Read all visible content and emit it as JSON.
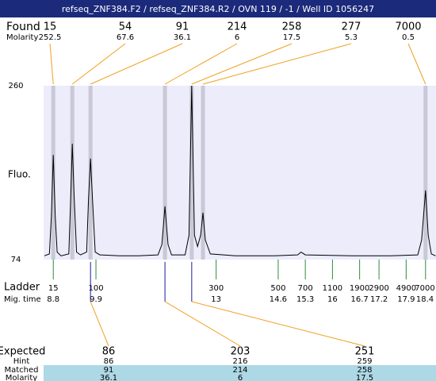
{
  "title": "refseq_ZNF384.F2 / refseq_ZNF384.R2 / OVN 119 / -1 / Well ID 1056247",
  "found": {
    "label": "Found",
    "sublabel": "Molarity",
    "sizes": [
      15,
      54,
      91,
      214,
      258,
      277,
      7000
    ],
    "molarity": [
      252.5,
      67.6,
      36.1,
      6,
      17.5,
      5.3,
      0.5
    ],
    "times": [
      8.8,
      9.29,
      9.76,
      11.68,
      12.37,
      12.66,
      18.4
    ]
  },
  "chart_data": {
    "type": "line",
    "ylabel": "Fluo.",
    "x": [
      8.57,
      8.7,
      8.75,
      8.8,
      8.85,
      8.9,
      9.0,
      9.2,
      9.25,
      9.29,
      9.34,
      9.4,
      9.5,
      9.66,
      9.71,
      9.76,
      9.81,
      9.88,
      10.0,
      10.5,
      11.0,
      11.5,
      11.6,
      11.68,
      11.76,
      11.85,
      12.2,
      12.3,
      12.37,
      12.44,
      12.52,
      12.6,
      12.66,
      12.72,
      12.85,
      13.5,
      14.5,
      15.1,
      15.19,
      15.3,
      16.5,
      17.5,
      18.2,
      18.3,
      18.4,
      18.47,
      18.55,
      18.66
    ],
    "values": [
      78,
      80,
      120,
      186,
      120,
      82,
      78,
      80,
      140,
      198,
      140,
      82,
      79,
      82,
      140,
      182,
      140,
      82,
      79,
      78,
      78,
      79,
      90,
      131,
      90,
      79,
      79,
      100,
      260,
      100,
      88,
      100,
      124,
      95,
      80,
      78,
      78,
      79,
      82,
      79,
      78,
      78,
      79,
      95,
      148,
      100,
      80,
      78
    ],
    "color": "#000000",
    "xlim": [
      8.55,
      18.67
    ],
    "ylim": [
      74,
      260
    ],
    "yticks": [
      74,
      260
    ]
  },
  "ladder": {
    "label": "Ladder",
    "sublabel": "Mig. time",
    "sizes": [
      15,
      100,
      300,
      500,
      700,
      1100,
      1900,
      2900,
      4900,
      7000
    ],
    "times": [
      8.8,
      9.9,
      13,
      14.6,
      15.3,
      16,
      16.7,
      17.2,
      17.9,
      18.4
    ]
  },
  "expected": {
    "label": "Expected",
    "values": [
      86,
      203,
      251
    ]
  },
  "hint": {
    "label": "Hint",
    "values": [
      86,
      216,
      259
    ]
  },
  "matched": {
    "label": "Matched",
    "values": [
      91,
      214,
      258
    ]
  },
  "matched_molarity": {
    "label": "Molarity",
    "values": [
      36.1,
      6,
      17.5
    ]
  }
}
